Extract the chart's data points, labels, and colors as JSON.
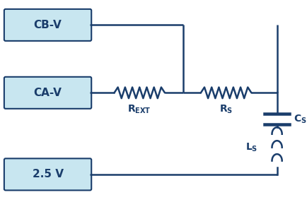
{
  "bg_color": "#ffffff",
  "box_fill": "#c8e6f0",
  "box_edge": "#1a3d6b",
  "circuit_color": "#1a3d6b",
  "box_labels": [
    "CB-V",
    "CA-V",
    "2.5 V"
  ],
  "lw": 1.8,
  "fig_w": 4.35,
  "fig_h": 2.93,
  "dpi": 100
}
